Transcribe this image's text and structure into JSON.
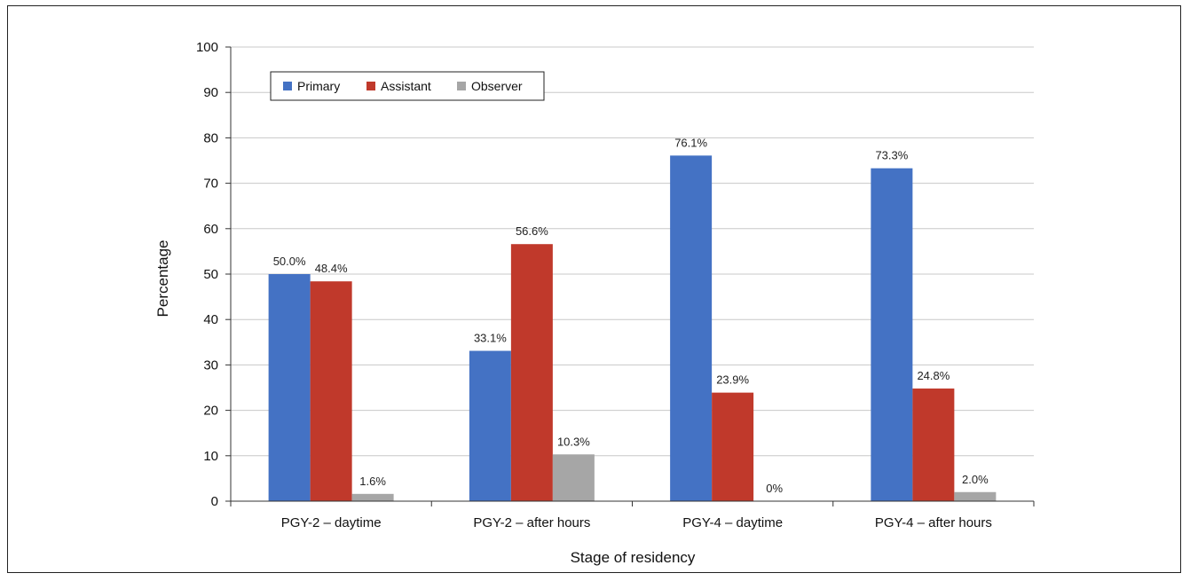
{
  "chart_data": {
    "type": "bar",
    "categories": [
      "PGY-2 – daytime",
      "PGY-2 – after hours",
      "PGY-4 – daytime",
      "PGY-4 – after hours"
    ],
    "series": [
      {
        "name": "Primary",
        "color": "#4472c4",
        "values": [
          50.0,
          33.1,
          76.1,
          73.3
        ],
        "labels": [
          "50.0%",
          "33.1%",
          "76.1%",
          "73.3%"
        ]
      },
      {
        "name": "Assistant",
        "color": "#c0392b",
        "values": [
          48.4,
          56.6,
          23.9,
          24.8
        ],
        "labels": [
          "48.4%",
          "56.6%",
          "23.9%",
          "24.8%"
        ]
      },
      {
        "name": "Observer",
        "color": "#a6a6a6",
        "values": [
          1.6,
          10.3,
          0,
          2.0
        ],
        "labels": [
          "1.6%",
          "10.3%",
          "0%",
          "2.0%"
        ]
      }
    ],
    "title": "",
    "xlabel": "Stage of residency",
    "ylabel": "Percentage",
    "ylim": [
      0,
      100
    ],
    "yticks": [
      0,
      10,
      20,
      30,
      40,
      50,
      60,
      70,
      80,
      90,
      100
    ],
    "grid": true,
    "legend": "top-left"
  }
}
